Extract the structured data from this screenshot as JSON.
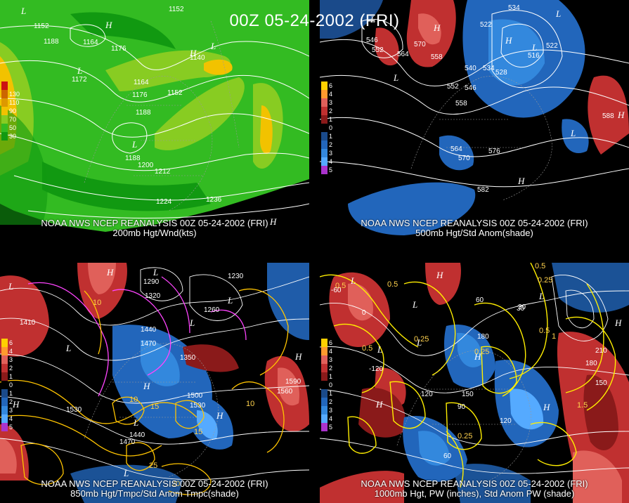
{
  "main_title": "00Z 05-24-2002 (FRI)",
  "panels": [
    {
      "caption_line1": "NOAA NWS NCEP REANALYSIS 00Z 05-24-2002 (FRI)",
      "caption_line2": "200mb Hgt/Wnd(kts)",
      "legend": [
        {
          "label": "",
          "color": "#cc1111"
        },
        {
          "label": "130",
          "color": "#cc6600"
        },
        {
          "label": "110",
          "color": "#dd9900"
        },
        {
          "label": "90",
          "color": "#f2c200"
        },
        {
          "label": "70",
          "color": "#88cc22"
        },
        {
          "label": "50",
          "color": "#33bb22"
        },
        {
          "label": "30",
          "color": "#119911"
        }
      ],
      "contour_labels": [
        "1152",
        "1164",
        "1188",
        "1176",
        "1152",
        "1140",
        "1164",
        "1176",
        "1188",
        "1172",
        "1188",
        "1200",
        "1212",
        "1224",
        "1236",
        "1152"
      ]
    },
    {
      "caption_line1": "NOAA NWS NCEP REANALYSIS 00Z 05-24-2002 (FRI)",
      "caption_line2": "500mb Hgt/Std Anom(shade)",
      "legend": [
        {
          "label": "6",
          "color": "#ffd000"
        },
        {
          "label": "4",
          "color": "#ff9a2e"
        },
        {
          "label": "3",
          "color": "#e0605a"
        },
        {
          "label": "2",
          "color": "#c03030"
        },
        {
          "label": "1",
          "color": "#8a1a1a"
        },
        {
          "label": "0",
          "color": "#000000"
        },
        {
          "label": "1",
          "color": "#1a4a8a"
        },
        {
          "label": "2",
          "color": "#2266bb"
        },
        {
          "label": "3",
          "color": "#3388dd"
        },
        {
          "label": "4",
          "color": "#55aaff"
        },
        {
          "label": "5",
          "color": "#aa33cc"
        }
      ],
      "contour_labels": [
        "534",
        "522",
        "546",
        "564",
        "552",
        "570",
        "558",
        "540",
        "534",
        "528",
        "552",
        "546",
        "558",
        "564",
        "570",
        "576",
        "582",
        "588",
        "516",
        "522"
      ]
    },
    {
      "caption_line1": "NOAA NWS NCEP REANALYSIS 00Z 05-24-2002 (FRI)",
      "caption_line2": "850mb Hgt/Tmpc/Std Anom Tmpc(shade)",
      "legend": [
        {
          "label": "6",
          "color": "#ffd000"
        },
        {
          "label": "4",
          "color": "#ff9a2e"
        },
        {
          "label": "3",
          "color": "#e0605a"
        },
        {
          "label": "2",
          "color": "#c03030"
        },
        {
          "label": "1",
          "color": "#8a1a1a"
        },
        {
          "label": "0",
          "color": "#000000"
        },
        {
          "label": "1",
          "color": "#1a4a8a"
        },
        {
          "label": "2",
          "color": "#2266bb"
        },
        {
          "label": "3",
          "color": "#3388dd"
        },
        {
          "label": "4",
          "color": "#55aaff"
        },
        {
          "label": "5",
          "color": "#aa33cc"
        }
      ],
      "contour_labels": [
        "1290",
        "1320",
        "1410",
        "1440",
        "1470",
        "1350",
        "1260",
        "1230",
        "1500",
        "1530",
        "1560",
        "1590",
        "1530",
        "1440",
        "1470"
      ],
      "temp_labels": [
        "10",
        "10",
        "15",
        "15",
        "10",
        "25",
        "20"
      ]
    },
    {
      "caption_line1": "NOAA NWS NCEP REANALYSIS 00Z 05-24-2002 (FRI)",
      "caption_line2": "1000mb Hgt, PW (inches), Std Anom PW (shade)",
      "legend": [
        {
          "label": "6",
          "color": "#ffd000"
        },
        {
          "label": "4",
          "color": "#ff9a2e"
        },
        {
          "label": "3",
          "color": "#e0605a"
        },
        {
          "label": "2",
          "color": "#c03030"
        },
        {
          "label": "1",
          "color": "#8a1a1a"
        },
        {
          "label": "0",
          "color": "#000000"
        },
        {
          "label": "1",
          "color": "#1a4a8a"
        },
        {
          "label": "2",
          "color": "#2266bb"
        },
        {
          "label": "3",
          "color": "#3388dd"
        },
        {
          "label": "4",
          "color": "#55aaff"
        },
        {
          "label": "5",
          "color": "#aa33cc"
        }
      ],
      "contour_labels": [
        "-60",
        "0",
        "30",
        "60",
        "120",
        "180",
        "150",
        "90",
        "210",
        "180",
        "150",
        "120",
        "60",
        "30",
        "-120"
      ],
      "pw_labels": [
        "0.5",
        "0.5",
        "0.25",
        "0.5",
        "0.25",
        "0.5",
        "1",
        "0.25",
        "0.5",
        "1.5",
        "0.25"
      ]
    }
  ]
}
